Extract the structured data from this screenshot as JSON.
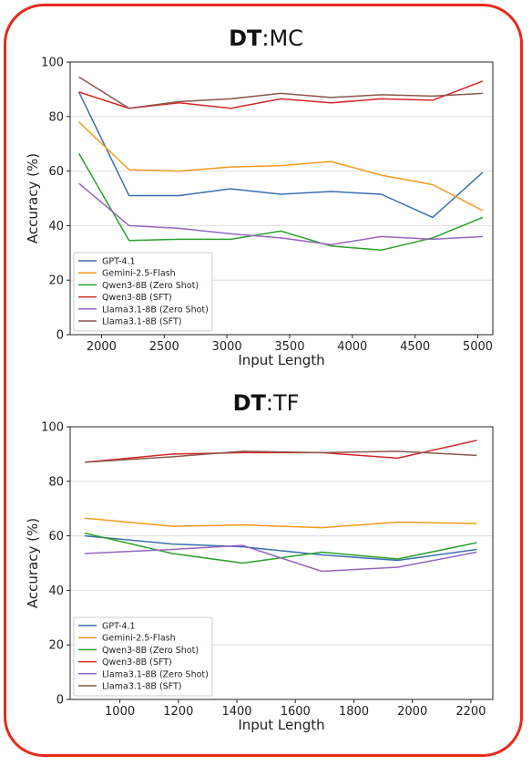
{
  "charts": [
    {
      "title_bold": "DT",
      "title_rest": ":MC"
    },
    {
      "title_bold": "DT",
      "title_rest": ":TF"
    }
  ],
  "chart_data": [
    {
      "type": "line",
      "title": "DT:MC",
      "xlabel": "Input Length",
      "ylabel": "Accuracy (%)",
      "xlim": [
        1750,
        5120
      ],
      "ylim": [
        0,
        100
      ],
      "xticks": [
        2000,
        2500,
        3000,
        3500,
        4000,
        4500,
        5000
      ],
      "yticks": [
        0,
        20,
        40,
        60,
        80,
        100
      ],
      "grid": "y",
      "legend_position": "bottom-left",
      "x": [
        1820,
        2220,
        2620,
        3030,
        3430,
        3830,
        4230,
        4640,
        5040
      ],
      "series": [
        {
          "name": "GPT-4.1",
          "color": "#3a6fb0",
          "values": [
            89,
            51,
            51,
            53.5,
            51.5,
            52.5,
            51.5,
            43,
            59.5
          ]
        },
        {
          "name": "Gemini-2.5-Flash",
          "color": "#f39c1f",
          "values": [
            78,
            60.5,
            60,
            61.5,
            62,
            63.5,
            58.5,
            55,
            45.5
          ]
        },
        {
          "name": "Qwen3-8B (Zero Shot)",
          "color": "#2ca02c",
          "values": [
            66.5,
            34.5,
            35,
            35,
            38,
            32.5,
            31,
            35.5,
            43
          ]
        },
        {
          "name": "Qwen3-8B (SFT)",
          "color": "#d62728",
          "values": [
            89,
            83,
            85,
            83,
            86.5,
            85,
            86.5,
            86,
            93
          ]
        },
        {
          "name": "Llama3.1-8B (Zero Shot)",
          "color": "#9467bd",
          "values": [
            55.5,
            40,
            39,
            37,
            35.5,
            33,
            36,
            35,
            36
          ]
        },
        {
          "name": "Llama3.1-8B (SFT)",
          "color": "#8c564b",
          "values": [
            94.5,
            83,
            85.5,
            86.5,
            88.5,
            87,
            88,
            87.5,
            88.5
          ]
        }
      ]
    },
    {
      "type": "line",
      "title": "DT:TF",
      "xlabel": "Input Length",
      "ylabel": "Accuracy (%)",
      "xlim": [
        830,
        2275
      ],
      "ylim": [
        0,
        100
      ],
      "xticks": [
        1000,
        1200,
        1400,
        1600,
        1800,
        2000,
        2200
      ],
      "yticks": [
        0,
        20,
        40,
        60,
        80,
        100
      ],
      "grid": "y",
      "legend_position": "bottom-left",
      "x": [
        880,
        1180,
        1420,
        1690,
        1950,
        2220
      ],
      "series": [
        {
          "name": "GPT-4.1",
          "color": "#3a6fb0",
          "values": [
            60,
            57,
            56,
            53,
            51,
            55
          ]
        },
        {
          "name": "Gemini-2.5-Flash",
          "color": "#f39c1f",
          "values": [
            66.5,
            63.5,
            64,
            63,
            65,
            64.5
          ]
        },
        {
          "name": "Qwen3-8B (Zero Shot)",
          "color": "#2ca02c",
          "values": [
            61,
            53.5,
            50,
            54,
            51.5,
            57.5
          ]
        },
        {
          "name": "Qwen3-8B (SFT)",
          "color": "#d62728",
          "values": [
            87,
            90,
            90.5,
            90.5,
            88.5,
            95
          ]
        },
        {
          "name": "Llama3.1-8B (Zero Shot)",
          "color": "#9467bd",
          "values": [
            53.5,
            55,
            56.5,
            47,
            48.5,
            54
          ]
        },
        {
          "name": "Llama3.1-8B (SFT)",
          "color": "#8c564b",
          "values": [
            87,
            89,
            91,
            90.5,
            91,
            89.5
          ]
        }
      ]
    }
  ]
}
